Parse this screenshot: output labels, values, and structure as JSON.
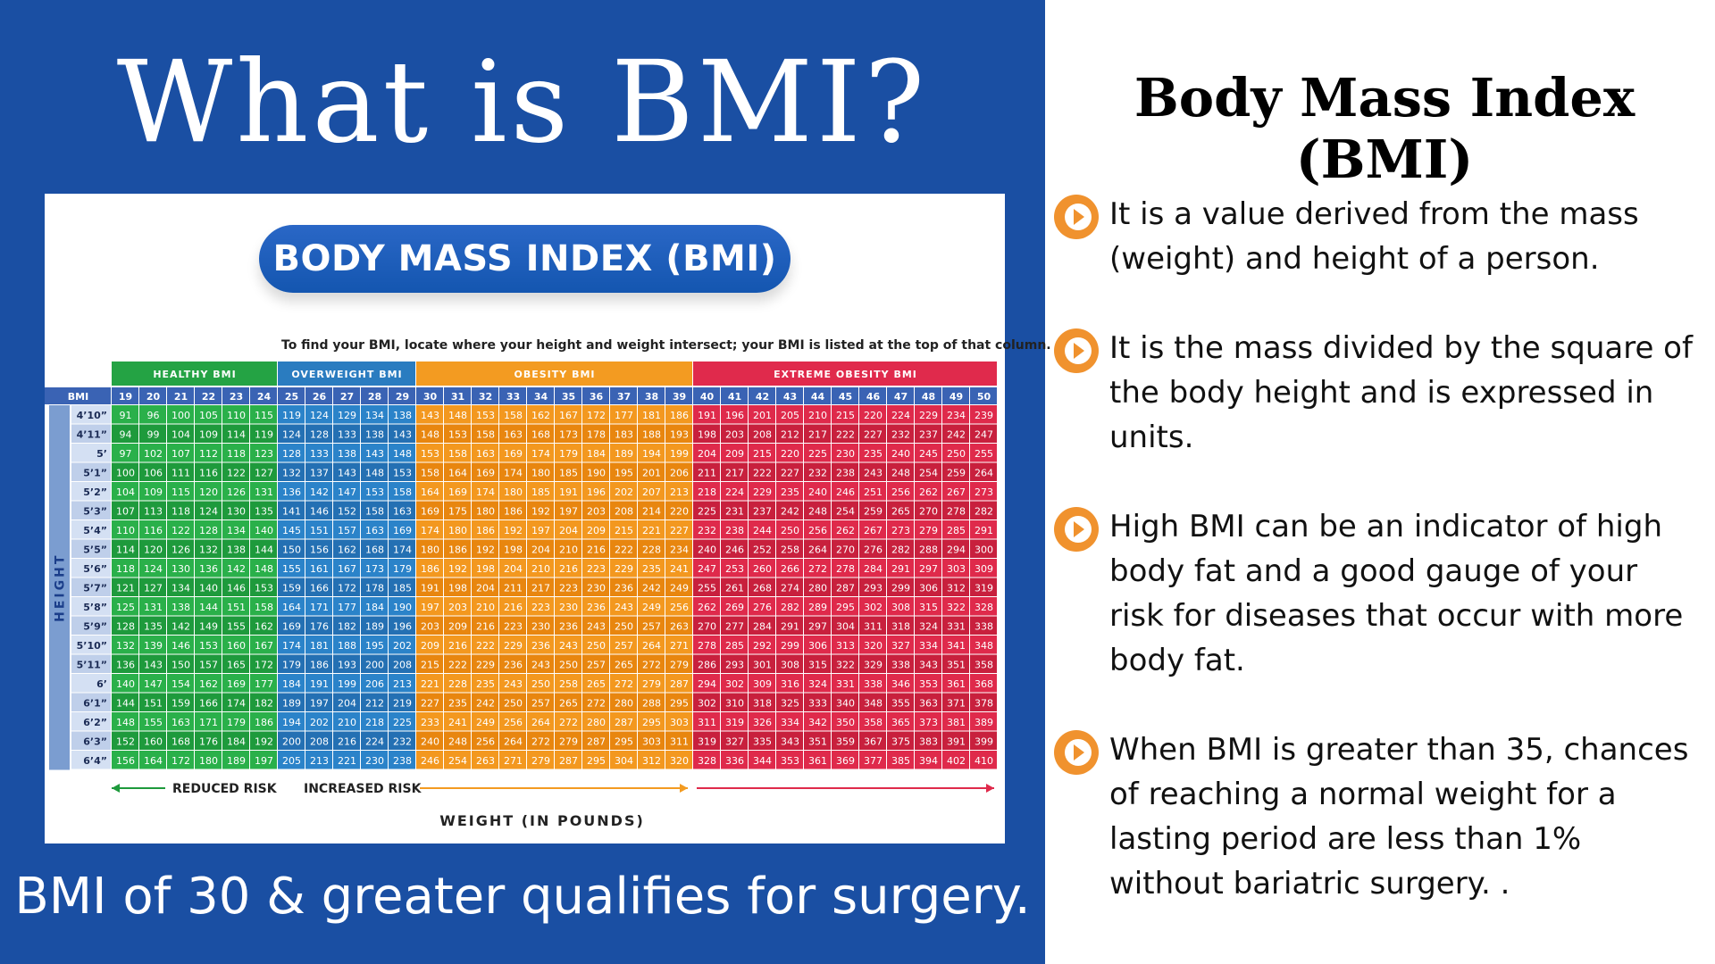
{
  "left_panel": {
    "title": "What is BMI?",
    "footer": "BMI of 30 & greater qualifies for surgery."
  },
  "chart_card": {
    "pill_title": "BODY MASS INDEX (BMI)",
    "instructions": "To find your BMI, locate where your height and weight intersect; your BMI is listed at the top of that column.",
    "height_label": "HEIGHT",
    "weight_label": "WEIGHT (IN POUNDS)",
    "reduced_risk": "REDUCED RISK",
    "increased_risk": "INCREASED RISK"
  },
  "right_panel": {
    "title": "Body Mass Index (BMI)",
    "bullets": [
      "It is a value derived from the mass (weight) and height of a person.",
      "It is the mass divided by the square of the body height and is expressed in units.",
      "High BMI can be an indicator of high body fat and a good gauge of your risk for diseases that occur with more body fat.",
      "When BMI is greater than 35, chances of reaching a normal weight for a lasting period are less than 1% without bariatric surgery. ."
    ],
    "bullet_icon": "play-circle-icon",
    "icon_color": "#f0922e"
  },
  "colors": {
    "panel_blue": "#1a4fa3",
    "healthy": "#2ab04a",
    "overweight": "#2b83c9",
    "obesity": "#f3981f",
    "extreme": "#df2a4b"
  },
  "chart_data": {
    "type": "table",
    "row_header": "BMI",
    "categories": [
      {
        "name": "HEALTHY BMI",
        "bmi_range": [
          19,
          24
        ]
      },
      {
        "name": "OVERWEIGHT BMI",
        "bmi_range": [
          25,
          29
        ]
      },
      {
        "name": "OBESITY BMI",
        "bmi_range": [
          30,
          39
        ]
      },
      {
        "name": "EXTREME OBESITY BMI",
        "bmi_range": [
          40,
          50
        ]
      }
    ],
    "bmi_values": [
      19,
      20,
      21,
      22,
      23,
      24,
      25,
      26,
      27,
      28,
      29,
      30,
      31,
      32,
      33,
      34,
      35,
      36,
      37,
      38,
      39,
      40,
      41,
      42,
      43,
      44,
      45,
      46,
      47,
      48,
      49,
      50
    ],
    "rows": [
      {
        "height": "4’10”",
        "weights": [
          91,
          96,
          100,
          105,
          110,
          115,
          119,
          124,
          129,
          134,
          138,
          143,
          148,
          153,
          158,
          162,
          167,
          172,
          177,
          181,
          186,
          191,
          196,
          201,
          205,
          210,
          215,
          220,
          224,
          229,
          234,
          239
        ]
      },
      {
        "height": "4’11”",
        "weights": [
          94,
          99,
          104,
          109,
          114,
          119,
          124,
          128,
          133,
          138,
          143,
          148,
          153,
          158,
          163,
          168,
          173,
          178,
          183,
          188,
          193,
          198,
          203,
          208,
          212,
          217,
          222,
          227,
          232,
          237,
          242,
          247
        ]
      },
      {
        "height": "5’",
        "weights": [
          97,
          102,
          107,
          112,
          118,
          123,
          128,
          133,
          138,
          143,
          148,
          153,
          158,
          163,
          169,
          174,
          179,
          184,
          189,
          194,
          199,
          204,
          209,
          215,
          220,
          225,
          230,
          235,
          240,
          245,
          250,
          255
        ]
      },
      {
        "height": "5’1”",
        "weights": [
          100,
          106,
          111,
          116,
          122,
          127,
          132,
          137,
          143,
          148,
          153,
          158,
          164,
          169,
          174,
          180,
          185,
          190,
          195,
          201,
          206,
          211,
          217,
          222,
          227,
          232,
          238,
          243,
          248,
          254,
          259,
          264
        ]
      },
      {
        "height": "5’2”",
        "weights": [
          104,
          109,
          115,
          120,
          126,
          131,
          136,
          142,
          147,
          153,
          158,
          164,
          169,
          174,
          180,
          185,
          191,
          196,
          202,
          207,
          213,
          218,
          224,
          229,
          235,
          240,
          246,
          251,
          256,
          262,
          267,
          273
        ]
      },
      {
        "height": "5’3”",
        "weights": [
          107,
          113,
          118,
          124,
          130,
          135,
          141,
          146,
          152,
          158,
          163,
          169,
          175,
          180,
          186,
          192,
          197,
          203,
          208,
          214,
          220,
          225,
          231,
          237,
          242,
          248,
          254,
          259,
          265,
          270,
          278,
          282
        ]
      },
      {
        "height": "5’4”",
        "weights": [
          110,
          116,
          122,
          128,
          134,
          140,
          145,
          151,
          157,
          163,
          169,
          174,
          180,
          186,
          192,
          197,
          204,
          209,
          215,
          221,
          227,
          232,
          238,
          244,
          250,
          256,
          262,
          267,
          273,
          279,
          285,
          291
        ]
      },
      {
        "height": "5’5”",
        "weights": [
          114,
          120,
          126,
          132,
          138,
          144,
          150,
          156,
          162,
          168,
          174,
          180,
          186,
          192,
          198,
          204,
          210,
          216,
          222,
          228,
          234,
          240,
          246,
          252,
          258,
          264,
          270,
          276,
          282,
          288,
          294,
          300
        ]
      },
      {
        "height": "5’6”",
        "weights": [
          118,
          124,
          130,
          136,
          142,
          148,
          155,
          161,
          167,
          173,
          179,
          186,
          192,
          198,
          204,
          210,
          216,
          223,
          229,
          235,
          241,
          247,
          253,
          260,
          266,
          272,
          278,
          284,
          291,
          297,
          303,
          309
        ]
      },
      {
        "height": "5’7”",
        "weights": [
          121,
          127,
          134,
          140,
          146,
          153,
          159,
          166,
          172,
          178,
          185,
          191,
          198,
          204,
          211,
          217,
          223,
          230,
          236,
          242,
          249,
          255,
          261,
          268,
          274,
          280,
          287,
          293,
          299,
          306,
          312,
          319
        ]
      },
      {
        "height": "5’8”",
        "weights": [
          125,
          131,
          138,
          144,
          151,
          158,
          164,
          171,
          177,
          184,
          190,
          197,
          203,
          210,
          216,
          223,
          230,
          236,
          243,
          249,
          256,
          262,
          269,
          276,
          282,
          289,
          295,
          302,
          308,
          315,
          322,
          328
        ]
      },
      {
        "height": "5’9”",
        "weights": [
          128,
          135,
          142,
          149,
          155,
          162,
          169,
          176,
          182,
          189,
          196,
          203,
          209,
          216,
          223,
          230,
          236,
          243,
          250,
          257,
          263,
          270,
          277,
          284,
          291,
          297,
          304,
          311,
          318,
          324,
          331,
          338
        ]
      },
      {
        "height": "5’10”",
        "weights": [
          132,
          139,
          146,
          153,
          160,
          167,
          174,
          181,
          188,
          195,
          202,
          209,
          216,
          222,
          229,
          236,
          243,
          250,
          257,
          264,
          271,
          278,
          285,
          292,
          299,
          306,
          313,
          320,
          327,
          334,
          341,
          348
        ]
      },
      {
        "height": "5’11”",
        "weights": [
          136,
          143,
          150,
          157,
          165,
          172,
          179,
          186,
          193,
          200,
          208,
          215,
          222,
          229,
          236,
          243,
          250,
          257,
          265,
          272,
          279,
          286,
          293,
          301,
          308,
          315,
          322,
          329,
          338,
          343,
          351,
          358
        ]
      },
      {
        "height": "6’",
        "weights": [
          140,
          147,
          154,
          162,
          169,
          177,
          184,
          191,
          199,
          206,
          213,
          221,
          228,
          235,
          243,
          250,
          258,
          265,
          272,
          279,
          287,
          294,
          302,
          309,
          316,
          324,
          331,
          338,
          346,
          353,
          361,
          368
        ]
      },
      {
        "height": "6’1”",
        "weights": [
          144,
          151,
          159,
          166,
          174,
          182,
          189,
          197,
          204,
          212,
          219,
          227,
          235,
          242,
          250,
          257,
          265,
          272,
          280,
          288,
          295,
          302,
          310,
          318,
          325,
          333,
          340,
          348,
          355,
          363,
          371,
          378
        ]
      },
      {
        "height": "6’2”",
        "weights": [
          148,
          155,
          163,
          171,
          179,
          186,
          194,
          202,
          210,
          218,
          225,
          233,
          241,
          249,
          256,
          264,
          272,
          280,
          287,
          295,
          303,
          311,
          319,
          326,
          334,
          342,
          350,
          358,
          365,
          373,
          381,
          389
        ]
      },
      {
        "height": "6’3”",
        "weights": [
          152,
          160,
          168,
          176,
          184,
          192,
          200,
          208,
          216,
          224,
          232,
          240,
          248,
          256,
          264,
          272,
          279,
          287,
          295,
          303,
          311,
          319,
          327,
          335,
          343,
          351,
          359,
          367,
          375,
          383,
          391,
          399
        ]
      },
      {
        "height": "6’4”",
        "weights": [
          156,
          164,
          172,
          180,
          189,
          197,
          205,
          213,
          221,
          230,
          238,
          246,
          254,
          263,
          271,
          279,
          287,
          295,
          304,
          312,
          320,
          328,
          336,
          344,
          353,
          361,
          369,
          377,
          385,
          394,
          402,
          410
        ]
      }
    ]
  }
}
